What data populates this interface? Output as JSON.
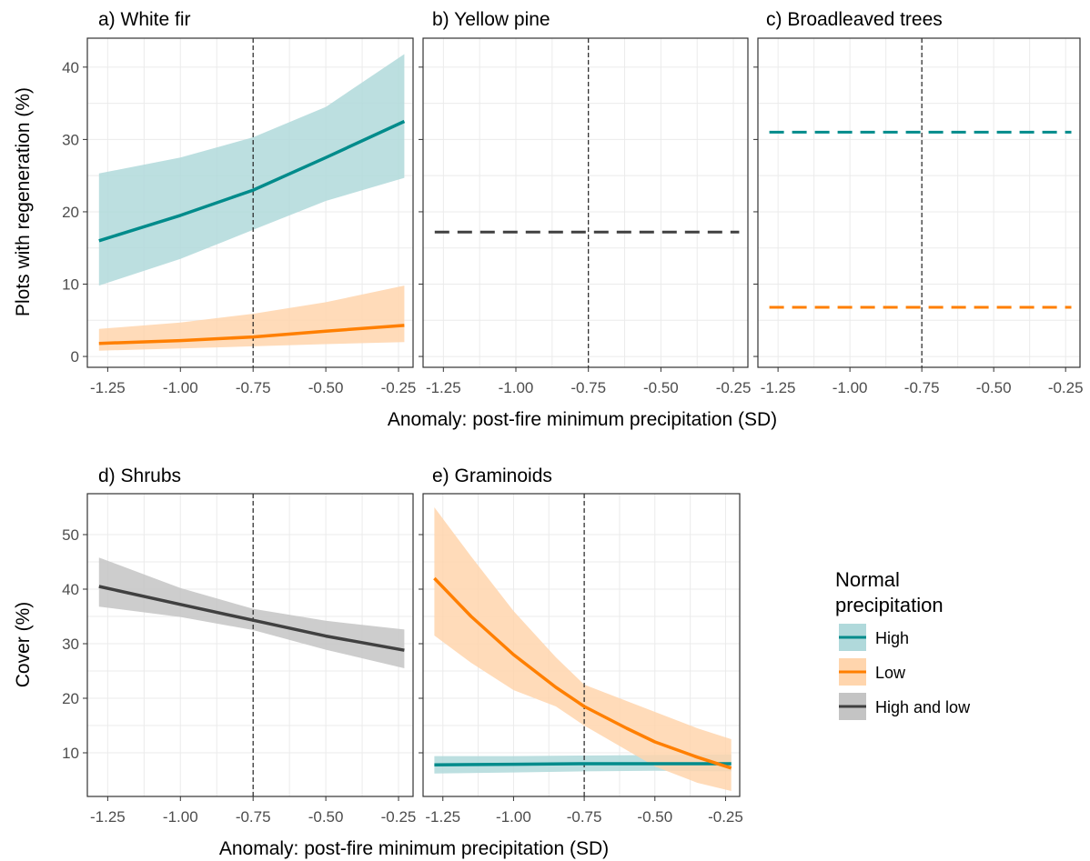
{
  "chart_data": [
    {
      "type": "line",
      "title": "a)  White fir",
      "ylabel": "Plots with regeneration (%)",
      "xlabel": "Anomaly: post-fire minimum precipitation (SD)",
      "xlim": [
        -1.32,
        -0.2
      ],
      "ylim": [
        -1.5,
        44
      ],
      "x_ticks": [
        -1.25,
        -1.0,
        -0.75,
        -0.5,
        -0.25
      ],
      "x_tick_labels": [
        "-1.25",
        "-1.00",
        "-0.75",
        "-0.50",
        "-0.25"
      ],
      "y_ticks": [
        0,
        10,
        20,
        30,
        40
      ],
      "y_tick_labels": [
        "0",
        "10",
        "20",
        "30",
        "40"
      ],
      "vline": -0.75,
      "series": [
        {
          "name": "High",
          "color": "#008b8b",
          "fill": "#b0d9db",
          "style": "solid",
          "x": [
            -1.28,
            -1.0,
            -0.75,
            -0.5,
            -0.23
          ],
          "y": [
            16,
            19.5,
            23,
            27.5,
            32.5
          ],
          "lower": [
            9.8,
            13.5,
            17.5,
            21.5,
            24.7
          ],
          "upper": [
            25.3,
            27.5,
            30.3,
            34.5,
            41.8
          ]
        },
        {
          "name": "Low",
          "color": "#ff7f00",
          "fill": "#ffd5ad",
          "style": "solid",
          "x": [
            -1.28,
            -1.0,
            -0.75,
            -0.5,
            -0.23
          ],
          "y": [
            1.8,
            2.2,
            2.7,
            3.5,
            4.3
          ],
          "lower": [
            0.8,
            1.1,
            1.4,
            1.7,
            2.0
          ],
          "upper": [
            3.8,
            4.7,
            5.9,
            7.5,
            9.8
          ]
        }
      ]
    },
    {
      "type": "line",
      "title": "b)  Yellow pine",
      "xlim": [
        -1.32,
        -0.2
      ],
      "ylim": [
        -1.5,
        44
      ],
      "x_ticks": [
        -1.25,
        -1.0,
        -0.75,
        -0.5,
        -0.25
      ],
      "x_tick_labels": [
        "-1.25",
        "-1.00",
        "-0.75",
        "-0.50",
        "-0.25"
      ],
      "y_ticks": [
        0,
        10,
        20,
        30,
        40
      ],
      "vline": -0.75,
      "series": [
        {
          "name": "High and low",
          "color": "#404040",
          "style": "dashed",
          "x": [
            -1.28,
            -0.23
          ],
          "y": [
            17.2,
            17.2
          ]
        }
      ]
    },
    {
      "type": "line",
      "title": "c)  Broadleaved trees",
      "xlim": [
        -1.32,
        -0.2
      ],
      "ylim": [
        -1.5,
        44
      ],
      "x_ticks": [
        -1.25,
        -1.0,
        -0.75,
        -0.5,
        -0.25
      ],
      "x_tick_labels": [
        "-1.25",
        "-1.00",
        "-0.75",
        "-0.50",
        "-0.25"
      ],
      "y_ticks": [
        0,
        10,
        20,
        30,
        40
      ],
      "vline": -0.75,
      "series": [
        {
          "name": "High",
          "color": "#008b8b",
          "style": "dashed",
          "x": [
            -1.28,
            -0.23
          ],
          "y": [
            31,
            31
          ]
        },
        {
          "name": "Low",
          "color": "#ff7f00",
          "style": "dashed",
          "x": [
            -1.28,
            -0.23
          ],
          "y": [
            6.8,
            6.8
          ]
        }
      ]
    },
    {
      "type": "line",
      "title": "d)  Shrubs",
      "ylabel": "Cover (%)",
      "xlabel": "Anomaly: post-fire minimum precipitation (SD)",
      "xlim": [
        -1.32,
        -0.2
      ],
      "ylim": [
        2,
        57.5
      ],
      "x_ticks": [
        -1.25,
        -1.0,
        -0.75,
        -0.5,
        -0.25
      ],
      "x_tick_labels": [
        "-1.25",
        "-1.00",
        "-0.75",
        "-0.50",
        "-0.25"
      ],
      "y_ticks": [
        10,
        20,
        30,
        40,
        50
      ],
      "y_tick_labels": [
        "10",
        "20",
        "30",
        "40",
        "50"
      ],
      "vline": -0.75,
      "series": [
        {
          "name": "High and low",
          "color": "#404040",
          "fill": "#c4c4c4",
          "style": "solid",
          "x": [
            -1.28,
            -1.0,
            -0.75,
            -0.5,
            -0.23
          ],
          "y": [
            40.5,
            37.2,
            34.3,
            31.4,
            28.8
          ],
          "lower": [
            36.8,
            34.9,
            32.5,
            28.9,
            25.5
          ],
          "upper": [
            45.8,
            40.2,
            36.4,
            34.2,
            32.6
          ]
        }
      ]
    },
    {
      "type": "line",
      "title": "e)  Graminoids",
      "xlim": [
        -1.32,
        -0.2
      ],
      "ylim": [
        2,
        57.5
      ],
      "x_ticks": [
        -1.25,
        -1.0,
        -0.75,
        -0.5,
        -0.25
      ],
      "x_tick_labels": [
        "-1.25",
        "-1.00",
        "-0.75",
        "-0.50",
        "-0.25"
      ],
      "y_ticks": [
        10,
        20,
        30,
        40,
        50
      ],
      "vline": -0.75,
      "series": [
        {
          "name": "High",
          "color": "#008b8b",
          "fill": "#b0d9db",
          "style": "solid",
          "x": [
            -1.28,
            -1.0,
            -0.75,
            -0.5,
            -0.23
          ],
          "y": [
            7.8,
            7.9,
            8.0,
            8.0,
            8.0
          ],
          "lower": [
            6.2,
            6.4,
            6.6,
            6.7,
            6.6
          ],
          "upper": [
            9.4,
            9.4,
            9.5,
            9.6,
            9.7
          ]
        },
        {
          "name": "Low",
          "color": "#ff7f00",
          "fill": "#ffd5ad",
          "style": "solid",
          "x": [
            -1.28,
            -1.15,
            -1.0,
            -0.85,
            -0.75,
            -0.6,
            -0.5,
            -0.35,
            -0.23
          ],
          "y": [
            42,
            35,
            28,
            22,
            18.5,
            14.5,
            12,
            9.2,
            7.2
          ],
          "lower": [
            31.5,
            26.5,
            21.5,
            18.5,
            15,
            10.5,
            7.5,
            4.5,
            3
          ],
          "upper": [
            55,
            46,
            36,
            27.5,
            22.5,
            19.5,
            17.5,
            14.5,
            12.5
          ]
        }
      ]
    }
  ],
  "legend": {
    "title_line1": "Normal",
    "title_line2": "precipitation",
    "items": [
      {
        "label": "High",
        "color": "#008b8b",
        "fill": "#b0d9db"
      },
      {
        "label": "Low",
        "color": "#ff7f00",
        "fill": "#ffd5ad"
      },
      {
        "label": "High and low",
        "color": "#404040",
        "fill": "#c4c4c4"
      }
    ]
  }
}
